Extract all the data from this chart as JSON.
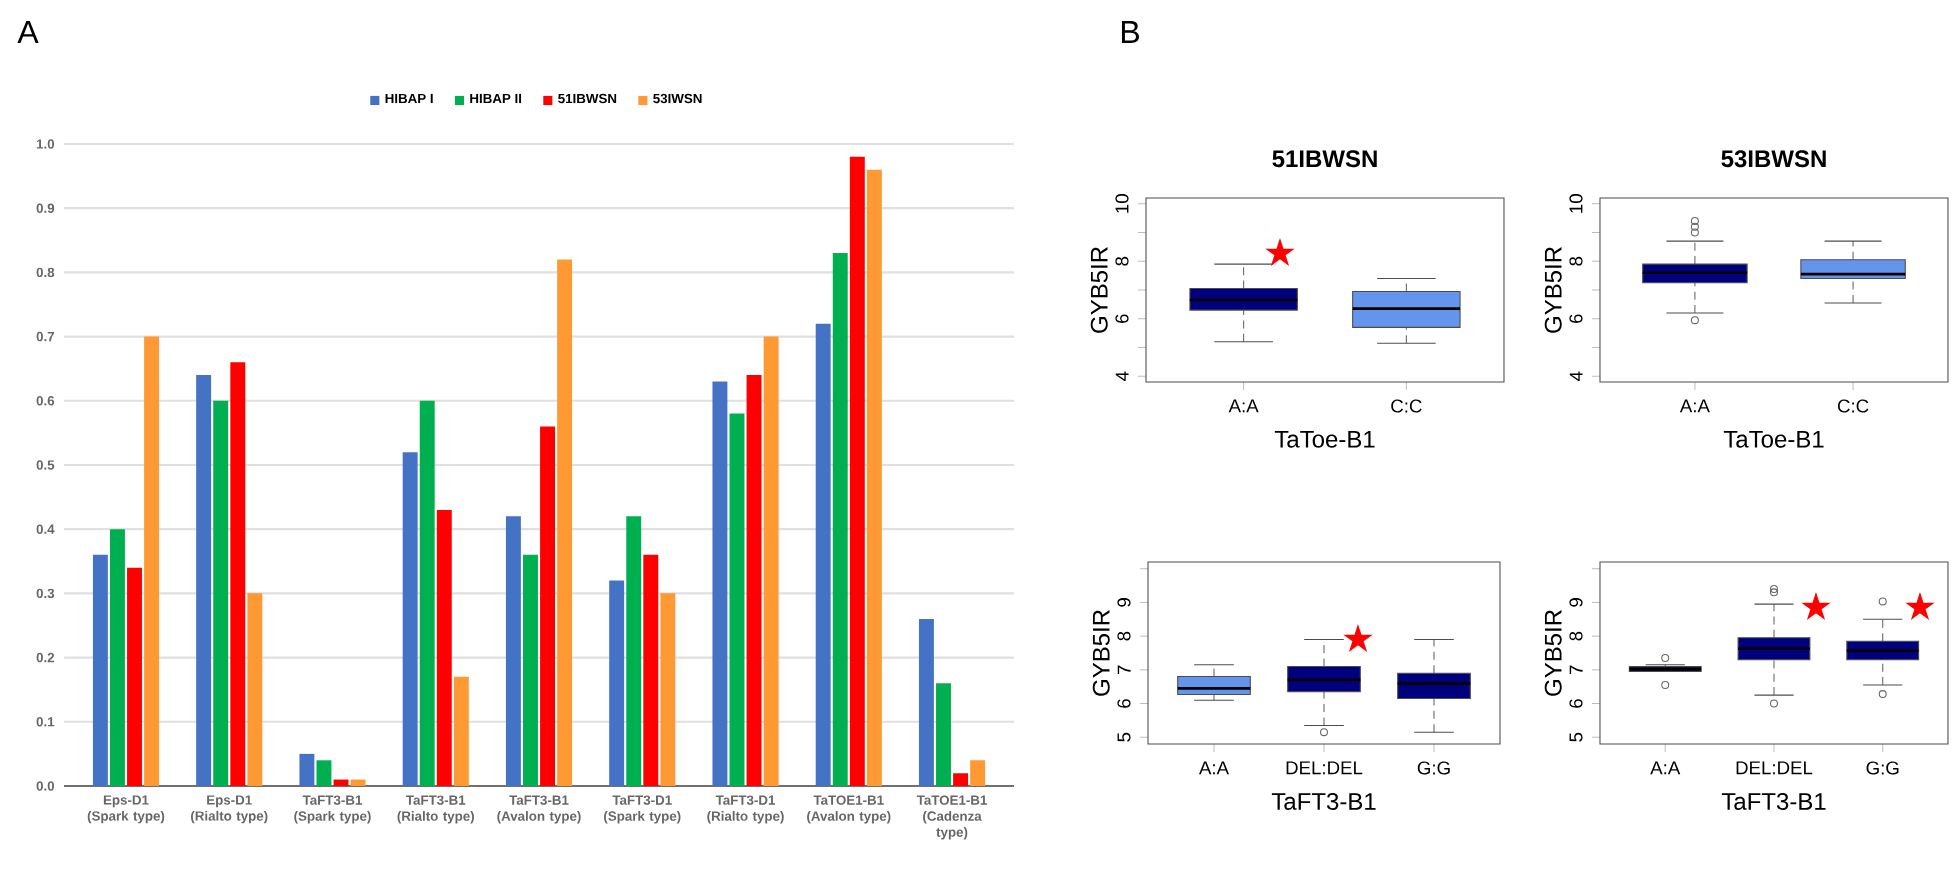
{
  "chart_data": [
    {
      "type": "bar",
      "annotations": [
        "A"
      ],
      "categories": [
        "Eps-D1 (Spark type)",
        "Eps-D1 (Rialto type)",
        "TaFT3-B1 (Spark type)",
        "TaFT3-B1 (Rialto type)",
        "TaFT3-B1 (Avalon type)",
        "TaFT3-D1 (Spark type)",
        "TaFT3-D1 (Rialto type)",
        "TaTOE1-B1 (Avalon type)",
        "TaTOE1-B1 (Cadenza type)"
      ],
      "series": [
        {
          "name": "HIBAP I",
          "color": "#4472c4",
          "values": [
            0.36,
            0.64,
            0.05,
            0.52,
            0.42,
            0.32,
            0.63,
            0.72,
            0.26
          ]
        },
        {
          "name": "HIBAP II",
          "color": "#00b050",
          "values": [
            0.4,
            0.6,
            0.04,
            0.6,
            0.36,
            0.42,
            0.58,
            0.83,
            0.16
          ]
        },
        {
          "name": "51IBWSN",
          "color": "#ff0000",
          "values": [
            0.34,
            0.66,
            0.01,
            0.43,
            0.56,
            0.36,
            0.64,
            0.98,
            0.02
          ]
        },
        {
          "name": "53IWSN",
          "color": "#ff9933",
          "values": [
            0.7,
            0.3,
            0.01,
            0.17,
            0.82,
            0.3,
            0.7,
            0.96,
            0.04
          ]
        }
      ],
      "ylim": [
        0,
        1.0
      ],
      "yticks": [
        {
          "value": 0,
          "label": "0.0"
        },
        {
          "value": 0.1,
          "label": "0.1"
        },
        {
          "value": 0.2,
          "label": "0.2"
        },
        {
          "value": 0.3,
          "label": "0.3"
        },
        {
          "value": 0.4,
          "label": "0.4"
        },
        {
          "value": 0.5,
          "label": "0.5"
        },
        {
          "value": 0.6,
          "label": "0.6"
        },
        {
          "value": 0.7,
          "label": "0.7"
        },
        {
          "value": 0.8,
          "label": "0.8"
        },
        {
          "value": 0.9,
          "label": "0.9"
        },
        {
          "value": 1.0,
          "label": "1.0"
        }
      ],
      "grid": "y",
      "legend": "top"
    },
    {
      "type": "box",
      "title": "51IBWSN",
      "xlabel": "TaToe-B1",
      "ylabel": "GYB5IR",
      "annotations": [
        "B",
        "★"
      ],
      "categories": [
        "A:A",
        "C:C"
      ],
      "boxes": [
        {
          "low": 5.2,
          "q1": 6.3,
          "median": 6.65,
          "q3": 7.05,
          "high": 7.9
        },
        {
          "low": 5.15,
          "q1": 5.7,
          "median": 6.35,
          "q3": 6.95,
          "high": 7.4
        }
      ],
      "colors": [
        "#00007f",
        "#6495ed"
      ],
      "marker": "circle",
      "ylim": [
        3.8,
        10.2
      ],
      "yticks": [
        4,
        {
          "value": 5,
          "label": null
        },
        6,
        {
          "value": 7,
          "label": null
        },
        8,
        {
          "value": 9,
          "label": null
        },
        10
      ]
    },
    {
      "type": "box",
      "title": "53IBWSN",
      "xlabel": "TaToe-B1",
      "ylabel": "GYB5IR",
      "categories": [
        "A:A",
        "C:C"
      ],
      "boxes": [
        {
          "low": 6.2,
          "q1": 7.25,
          "median": 7.6,
          "q3": 7.9,
          "high": 8.7,
          "outliers": [
            5.95,
            9.0,
            9.2,
            9.4
          ]
        },
        {
          "low": 6.55,
          "q1": 7.4,
          "median": 7.55,
          "q3": 8.05,
          "high": 8.7
        }
      ],
      "colors": [
        "#00007f",
        "#6495ed"
      ],
      "marker": "circle",
      "ylim": [
        3.8,
        10.2
      ],
      "yticks": [
        4,
        {
          "value": 5,
          "label": null
        },
        6,
        {
          "value": 7,
          "label": null
        },
        8,
        {
          "value": 9,
          "label": null
        },
        10
      ]
    },
    {
      "type": "box",
      "xlabel": "TaFT3-B1",
      "ylabel": "GYB5IR",
      "annotations": [
        "★"
      ],
      "categories": [
        "A:A",
        "DEL:DEL",
        "G:G"
      ],
      "boxes": [
        {
          "low": 6.1,
          "q1": 6.27,
          "median": 6.45,
          "q3": 6.8,
          "high": 7.15
        },
        {
          "low": 5.35,
          "q1": 6.35,
          "median": 6.7,
          "q3": 7.1,
          "high": 7.9,
          "outliers": [
            5.15
          ]
        },
        {
          "low": 5.15,
          "q1": 6.15,
          "median": 6.6,
          "q3": 6.9,
          "high": 7.9
        }
      ],
      "colors": [
        "#6495ed",
        "#00007f",
        "#00007f"
      ],
      "marker": "circle",
      "ylim": [
        4.8,
        10.2
      ],
      "yticks": [
        5,
        6,
        7,
        8,
        9,
        {
          "value": 10,
          "label": null
        }
      ]
    },
    {
      "type": "box",
      "xlabel": "TaFT3-B1",
      "ylabel": "GYB5IR",
      "annotations": [
        "★",
        "★"
      ],
      "categories": [
        "A:A",
        "DEL:DEL",
        "G:G"
      ],
      "boxes": [
        {
          "low": 6.95,
          "q1": 6.95,
          "median": 7.02,
          "q3": 7.1,
          "high": 7.15,
          "outliers": [
            6.55,
            7.35
          ]
        },
        {
          "low": 6.25,
          "q1": 7.3,
          "median": 7.63,
          "q3": 7.95,
          "high": 8.95,
          "outliers": [
            6.0,
            9.3,
            9.4
          ]
        },
        {
          "low": 6.55,
          "q1": 7.3,
          "median": 7.57,
          "q3": 7.85,
          "high": 8.5,
          "outliers": [
            6.28,
            9.03
          ]
        }
      ],
      "colors": [
        "#14143c",
        "#00007f",
        "#00007f"
      ],
      "marker": "circle",
      "ylim": [
        4.8,
        10.2
      ],
      "yticks": [
        5,
        6,
        7,
        8,
        9,
        {
          "value": 10,
          "label": null
        }
      ]
    }
  ]
}
